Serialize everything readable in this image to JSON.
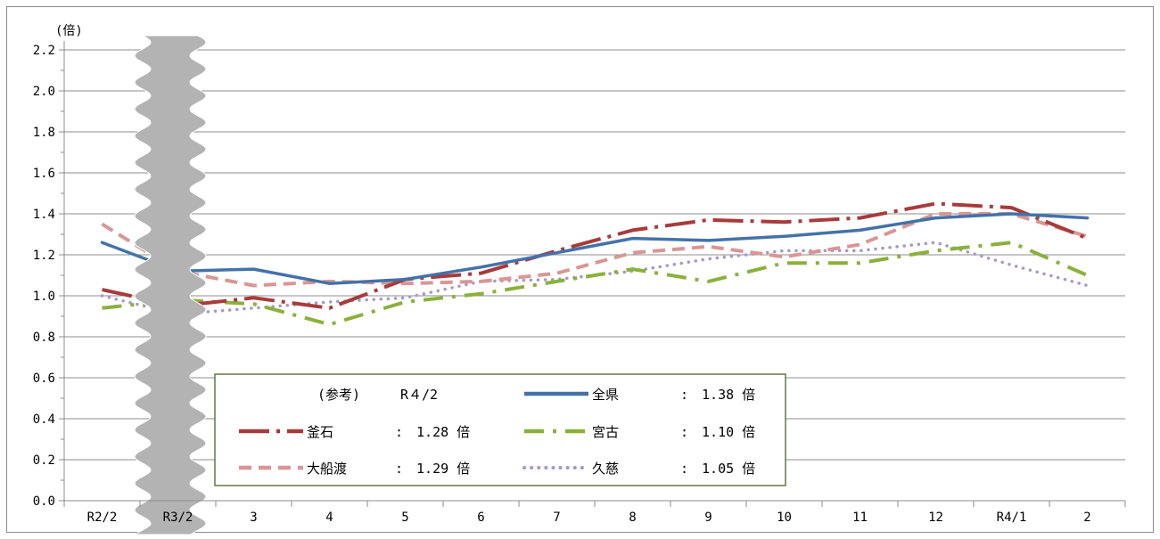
{
  "chart_data": {
    "type": "line",
    "y_unit_label": "(倍)",
    "ylim": [
      0,
      2.2
    ],
    "y_ticks": [
      "0.0",
      "0.2",
      "0.4",
      "0.6",
      "0.8",
      "1.0",
      "1.2",
      "1.4",
      "1.6",
      "1.8",
      "2.0",
      "2.2"
    ],
    "grid": true,
    "axis_break": "between R2/2 and R3/2",
    "categories": [
      "R2/2",
      "R3/2",
      "3",
      "4",
      "5",
      "6",
      "7",
      "8",
      "9",
      "10",
      "11",
      "12",
      "R4/1",
      "2"
    ],
    "series": [
      {
        "name": "全県",
        "color": "#4472a8",
        "style": "solid",
        "values": [
          1.26,
          1.12,
          1.13,
          1.06,
          1.08,
          1.14,
          1.21,
          1.28,
          1.27,
          1.29,
          1.32,
          1.38,
          1.4,
          1.38
        ]
      },
      {
        "name": "釜石",
        "color": "#a83b3b",
        "style": "dash-dot",
        "values": [
          1.03,
          0.95,
          0.99,
          0.94,
          1.08,
          1.11,
          1.22,
          1.32,
          1.37,
          1.36,
          1.38,
          1.45,
          1.43,
          1.28
        ]
      },
      {
        "name": "大船渡",
        "color": "#d99694",
        "style": "dash",
        "values": [
          1.35,
          1.12,
          1.05,
          1.07,
          1.06,
          1.07,
          1.11,
          1.21,
          1.24,
          1.19,
          1.25,
          1.4,
          1.4,
          1.29
        ]
      },
      {
        "name": "宮古",
        "color": "#8ab13c",
        "style": "long-dash-dot",
        "values": [
          0.94,
          0.98,
          0.96,
          0.86,
          0.97,
          1.01,
          1.07,
          1.13,
          1.07,
          1.16,
          1.16,
          1.22,
          1.26,
          1.1
        ]
      },
      {
        "name": "久慈",
        "color": "#a699c9",
        "style": "dot",
        "values": [
          1.0,
          0.91,
          0.94,
          0.97,
          0.99,
          1.07,
          1.08,
          1.12,
          1.18,
          1.22,
          1.22,
          1.26,
          1.15,
          1.05
        ]
      }
    ]
  },
  "legend": {
    "reference": "(参考)",
    "period": "R４/2",
    "entries": [
      {
        "name": "全県",
        "value": ":　1.38 倍"
      },
      {
        "name": "釜石",
        "value": ":　1.28 倍"
      },
      {
        "name": "宮古",
        "value": ":　1.10 倍"
      },
      {
        "name": "大船渡",
        "value": ":　1.29 倍"
      },
      {
        "name": "久慈",
        "value": ":　1.05 倍"
      }
    ]
  }
}
